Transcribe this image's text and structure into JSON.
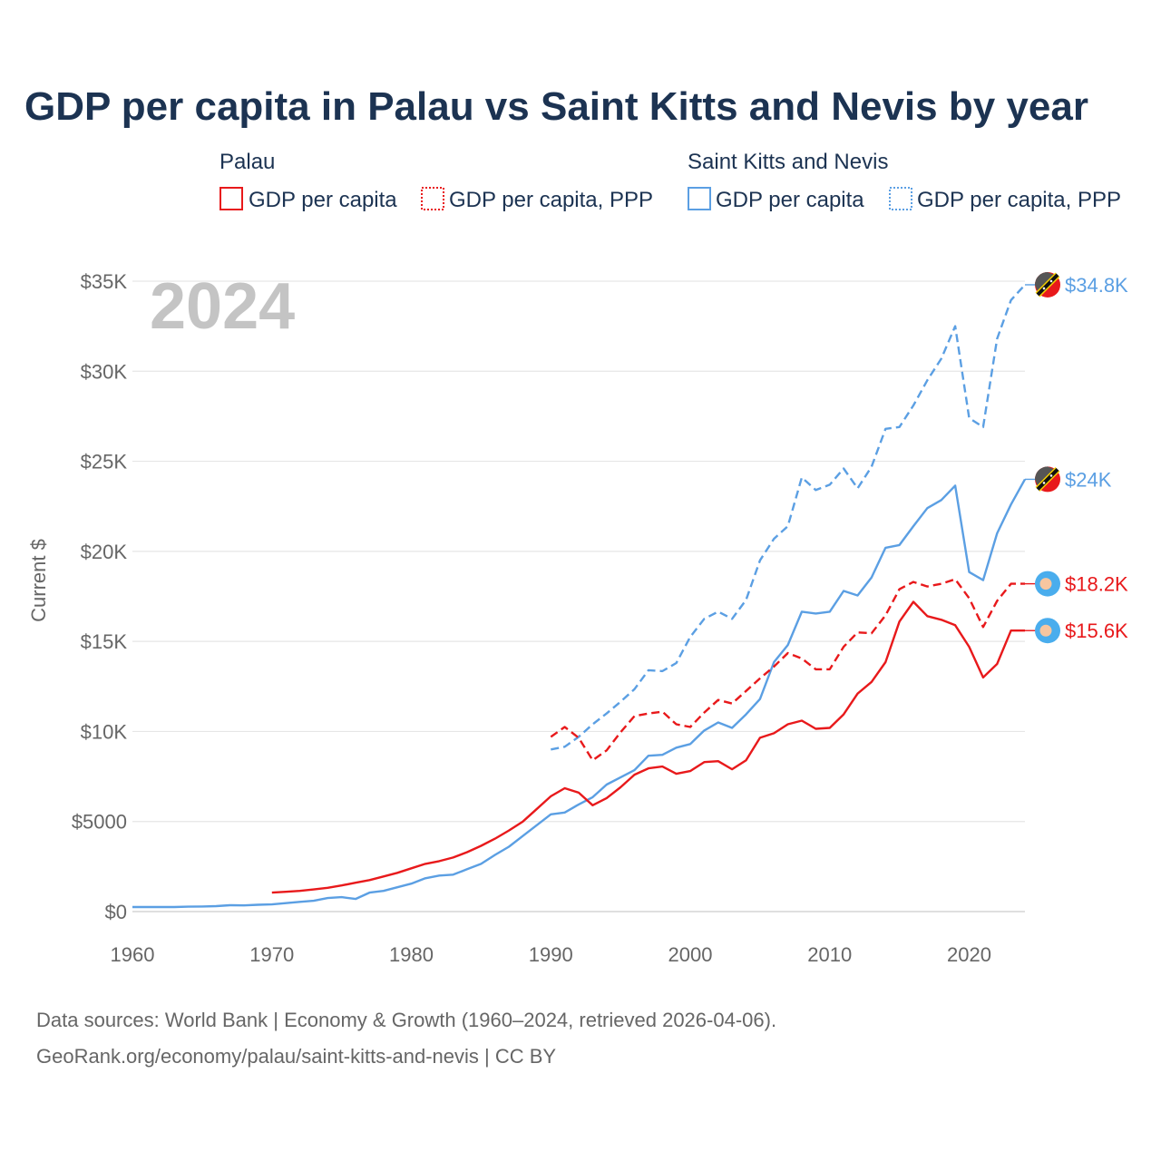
{
  "title": "GDP per capita in Palau vs Saint Kitts and Nevis by year",
  "colors": {
    "palau": "#e8191b",
    "skn": "#5b9fe3",
    "title": "#1c3352",
    "tick": "#666666",
    "grid": "#e6e6e6",
    "watermark": "#c4c4c4"
  },
  "legend": {
    "palau": {
      "group": "Palau",
      "gdp": "GDP per capita",
      "ppp": "GDP per capita, PPP"
    },
    "skn": {
      "group": "Saint Kitts and Nevis",
      "gdp": "GDP per capita",
      "ppp": "GDP per capita, PPP"
    }
  },
  "year_watermark": "2024",
  "footer": {
    "line1": "Data sources: World Bank | Economy & Growth (1960–2024, retrieved 2026-04-06).",
    "line2": "GeoRank.org/economy/palau/saint-kitts-and-nevis | CC BY"
  },
  "chart_data": {
    "type": "line",
    "title": "GDP per capita in Palau vs Saint Kitts and Nevis by year",
    "xlabel": "",
    "ylabel": "Current $",
    "xlim": [
      1960,
      2024
    ],
    "ylim": [
      0,
      35000
    ],
    "grid": true,
    "legend_position": "top",
    "x_ticks": [
      1960,
      1970,
      1980,
      1990,
      2000,
      2010,
      2020
    ],
    "x_tick_labels": [
      "1960",
      "1970",
      "1980",
      "1990",
      "2000",
      "2010",
      "2020"
    ],
    "y_ticks": [
      0,
      5000,
      10000,
      15000,
      20000,
      25000,
      30000,
      35000
    ],
    "y_tick_labels": [
      "$0",
      "$5000",
      "$10K",
      "$15K",
      "$20K",
      "$25K",
      "$30K",
      "$35K"
    ],
    "series": [
      {
        "name": "Saint Kitts and Nevis — GDP per capita, PPP",
        "country": "skn",
        "style": "dashed",
        "end_label": "$34.8K",
        "x": [
          1990,
          1991,
          1992,
          1993,
          1994,
          1995,
          1996,
          1997,
          1998,
          1999,
          2000,
          2001,
          2002,
          2003,
          2004,
          2005,
          2006,
          2007,
          2008,
          2009,
          2010,
          2011,
          2012,
          2013,
          2014,
          2015,
          2016,
          2017,
          2018,
          2019,
          2020,
          2021,
          2022,
          2023,
          2024
        ],
        "values": [
          9000,
          9150,
          9700,
          10400,
          11000,
          11650,
          12350,
          13400,
          13350,
          13800,
          15250,
          16250,
          16650,
          16250,
          17300,
          19500,
          20700,
          21400,
          24100,
          23400,
          23700,
          24600,
          23500,
          24700,
          26800,
          26900,
          28100,
          29500,
          30700,
          32500,
          27400,
          26900,
          31800,
          33950,
          34800
        ]
      },
      {
        "name": "Saint Kitts and Nevis — GDP per capita",
        "country": "skn",
        "style": "solid",
        "end_label": "$24K",
        "x": [
          1960,
          1961,
          1962,
          1963,
          1964,
          1965,
          1966,
          1967,
          1968,
          1969,
          1970,
          1971,
          1972,
          1973,
          1974,
          1975,
          1976,
          1977,
          1978,
          1979,
          1980,
          1981,
          1982,
          1983,
          1984,
          1985,
          1986,
          1987,
          1988,
          1989,
          1990,
          1991,
          1992,
          1993,
          1994,
          1995,
          1996,
          1997,
          1998,
          1999,
          2000,
          2001,
          2002,
          2003,
          2004,
          2005,
          2006,
          2007,
          2008,
          2009,
          2010,
          2011,
          2012,
          2013,
          2014,
          2015,
          2016,
          2017,
          2018,
          2019,
          2020,
          2021,
          2022,
          2023,
          2024
        ],
        "values": [
          250,
          250,
          250,
          250,
          270,
          280,
          300,
          350,
          340,
          380,
          400,
          470,
          540,
          600,
          750,
          800,
          700,
          1050,
          1150,
          1350,
          1550,
          1850,
          2000,
          2050,
          2350,
          2650,
          3150,
          3600,
          4200,
          4800,
          5400,
          5500,
          5950,
          6350,
          7050,
          7450,
          7850,
          8650,
          8700,
          9100,
          9300,
          10050,
          10500,
          10200,
          10950,
          11800,
          13850,
          14800,
          16650,
          16550,
          16650,
          17800,
          17550,
          18550,
          20200,
          20350,
          21400,
          22400,
          22850,
          23650,
          18850,
          18400,
          21000,
          22600,
          24000
        ]
      },
      {
        "name": "Palau — GDP per capita, PPP",
        "country": "palau",
        "style": "dashed",
        "end_label": "$18.2K",
        "x": [
          1990,
          1991,
          1992,
          1993,
          1994,
          1995,
          1996,
          1997,
          1998,
          1999,
          2000,
          2001,
          2002,
          2003,
          2004,
          2005,
          2006,
          2007,
          2008,
          2009,
          2010,
          2011,
          2012,
          2013,
          2014,
          2015,
          2016,
          2017,
          2018,
          2019,
          2020,
          2021,
          2022,
          2023,
          2024
        ],
        "values": [
          9700,
          10250,
          9650,
          8400,
          8950,
          9950,
          10850,
          11000,
          11100,
          10400,
          10250,
          11050,
          11750,
          11550,
          12250,
          12950,
          13600,
          14350,
          14050,
          13450,
          13450,
          14700,
          15500,
          15450,
          16450,
          17900,
          18300,
          18050,
          18200,
          18450,
          17400,
          15800,
          17250,
          18200,
          18200
        ]
      },
      {
        "name": "Palau — GDP per capita",
        "country": "palau",
        "style": "solid",
        "end_label": "$15.6K",
        "x": [
          1970,
          1971,
          1972,
          1973,
          1974,
          1975,
          1976,
          1977,
          1978,
          1979,
          1980,
          1981,
          1982,
          1983,
          1984,
          1985,
          1986,
          1987,
          1988,
          1989,
          1990,
          1991,
          1992,
          1993,
          1994,
          1995,
          1996,
          1997,
          1998,
          1999,
          2000,
          2001,
          2002,
          2003,
          2004,
          2005,
          2006,
          2007,
          2008,
          2009,
          2010,
          2011,
          2012,
          2013,
          2014,
          2015,
          2016,
          2017,
          2018,
          2019,
          2020,
          2021,
          2022,
          2023,
          2024
        ],
        "values": [
          1050,
          1100,
          1150,
          1230,
          1320,
          1450,
          1600,
          1750,
          1950,
          2150,
          2400,
          2650,
          2800,
          3000,
          3300,
          3650,
          4050,
          4500,
          5000,
          5700,
          6400,
          6850,
          6600,
          5900,
          6300,
          6900,
          7600,
          7950,
          8050,
          7650,
          7800,
          8300,
          8350,
          7900,
          8400,
          9650,
          9900,
          10400,
          10600,
          10150,
          10200,
          10950,
          12100,
          12750,
          13850,
          16100,
          17200,
          16400,
          16200,
          15900,
          14700,
          13000,
          13750,
          15600,
          15600
        ]
      }
    ]
  }
}
